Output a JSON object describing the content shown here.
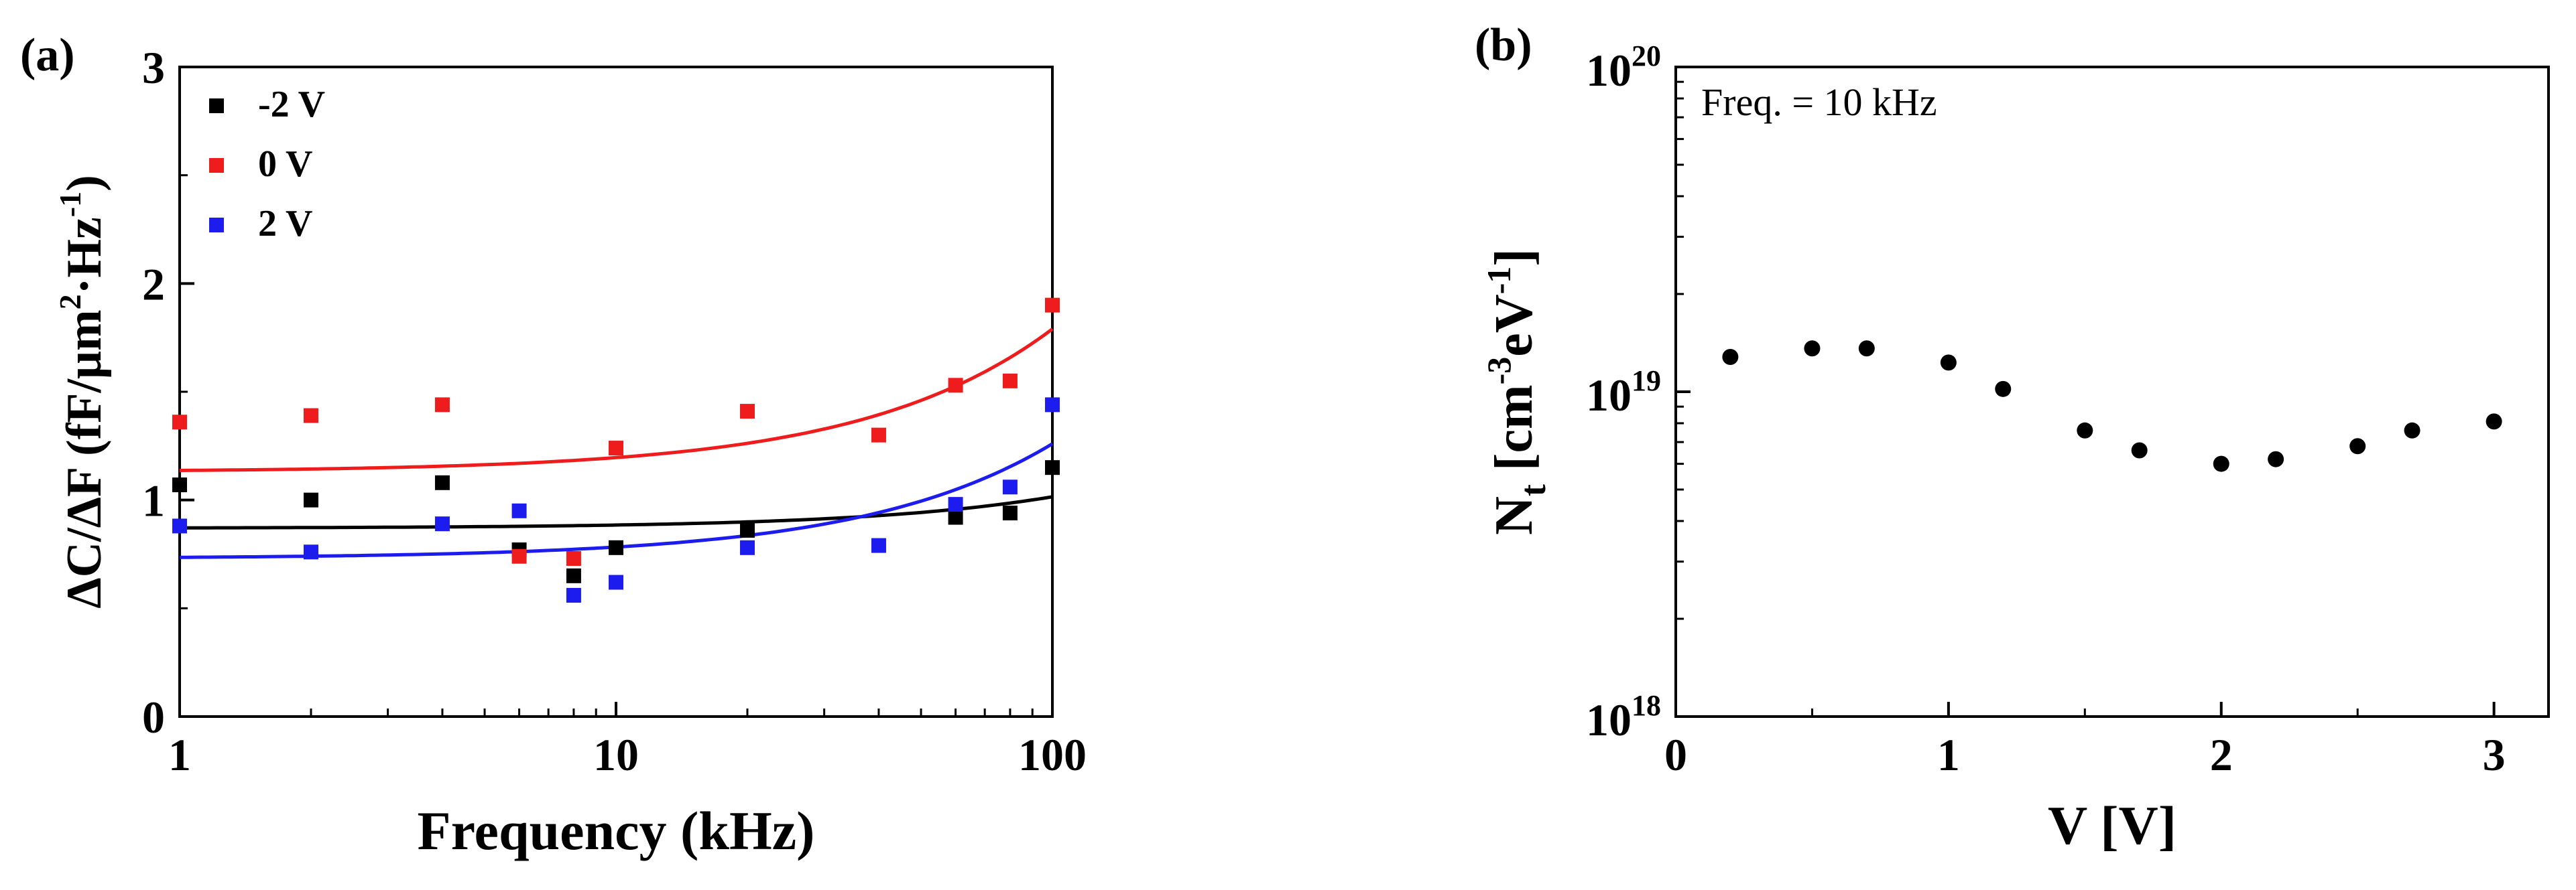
{
  "chart_data": [
    {
      "type": "scatter",
      "panel_label": "(a)",
      "xlabel": "Frequency (kHz)",
      "ylabel_parts": [
        "ΔC/ΔF (fF/μm",
        "2",
        "·Hz",
        "-1",
        ")"
      ],
      "xscale": "log",
      "xlim": [
        1,
        100
      ],
      "ylim": [
        0,
        3
      ],
      "x_ticks": [
        {
          "v": 1,
          "t": "1"
        },
        {
          "v": 10,
          "t": "10"
        },
        {
          "v": 100,
          "t": "100"
        }
      ],
      "y_ticks": [
        {
          "v": 0,
          "t": "0"
        },
        {
          "v": 1,
          "t": "1"
        },
        {
          "v": 2,
          "t": "2"
        },
        {
          "v": 3,
          "t": "3"
        }
      ],
      "legend": "top-left",
      "series": [
        {
          "name": "-2 V",
          "color": "#000000",
          "x": [
            1,
            2,
            4,
            6,
            8,
            10,
            20,
            60,
            80,
            100
          ],
          "y": [
            1.07,
            1.0,
            1.08,
            0.77,
            0.65,
            0.78,
            0.86,
            0.92,
            0.94,
            1.15
          ],
          "fit": [
            0.87,
            0.00145
          ]
        },
        {
          "name": "0 V",
          "color": "#ee1c1c",
          "x": [
            1,
            2,
            4,
            6,
            8,
            10,
            20,
            40,
            60,
            80,
            100
          ],
          "y": [
            1.36,
            1.39,
            1.44,
            0.74,
            0.73,
            1.24,
            1.41,
            1.3,
            1.53,
            1.55,
            1.9
          ],
          "fit": [
            1.13,
            0.0066
          ]
        },
        {
          "name": "2 V",
          "color": "#1c1cee",
          "x": [
            1,
            2,
            4,
            6,
            8,
            10,
            20,
            40,
            60,
            80,
            100
          ],
          "y": [
            0.88,
            0.76,
            0.89,
            0.95,
            0.56,
            0.62,
            0.78,
            0.79,
            0.98,
            1.06,
            1.44
          ],
          "fit": [
            0.73,
            0.0053
          ]
        }
      ]
    },
    {
      "type": "scatter",
      "panel_label": "(b)",
      "annotation": "Freq. = 10 kHz",
      "xlabel": "V [V]",
      "ylabel_parts": [
        "N",
        "t",
        " [cm",
        "-3",
        "eV",
        "-1",
        "]"
      ],
      "yscale": "log",
      "xlim": [
        0,
        3.2
      ],
      "ylim": [
        1e+18,
        1e+20
      ],
      "x_ticks": [
        {
          "v": 0,
          "t": "0"
        },
        {
          "v": 1,
          "t": "1"
        },
        {
          "v": 2,
          "t": "2"
        },
        {
          "v": 3,
          "t": "3"
        }
      ],
      "y_ticks": [
        {
          "v": 1e+18,
          "base": "10",
          "exp": "18"
        },
        {
          "v": 1e+19,
          "base": "10",
          "exp": "19"
        },
        {
          "v": 1e+20,
          "base": "10",
          "exp": "20"
        }
      ],
      "series": [
        {
          "name": "Nt",
          "color": "#000000",
          "x": [
            0.2,
            0.5,
            0.7,
            1.0,
            1.2,
            1.5,
            1.7,
            2.0,
            2.2,
            2.5,
            2.7,
            3.0
          ],
          "y": [
            1.28e+19,
            1.36e+19,
            1.36e+19,
            1.23e+19,
            1.02e+19,
            7.6e+18,
            6.6e+18,
            6e+18,
            6.2e+18,
            6.8e+18,
            7.6e+18,
            8.1e+18
          ]
        }
      ]
    }
  ]
}
